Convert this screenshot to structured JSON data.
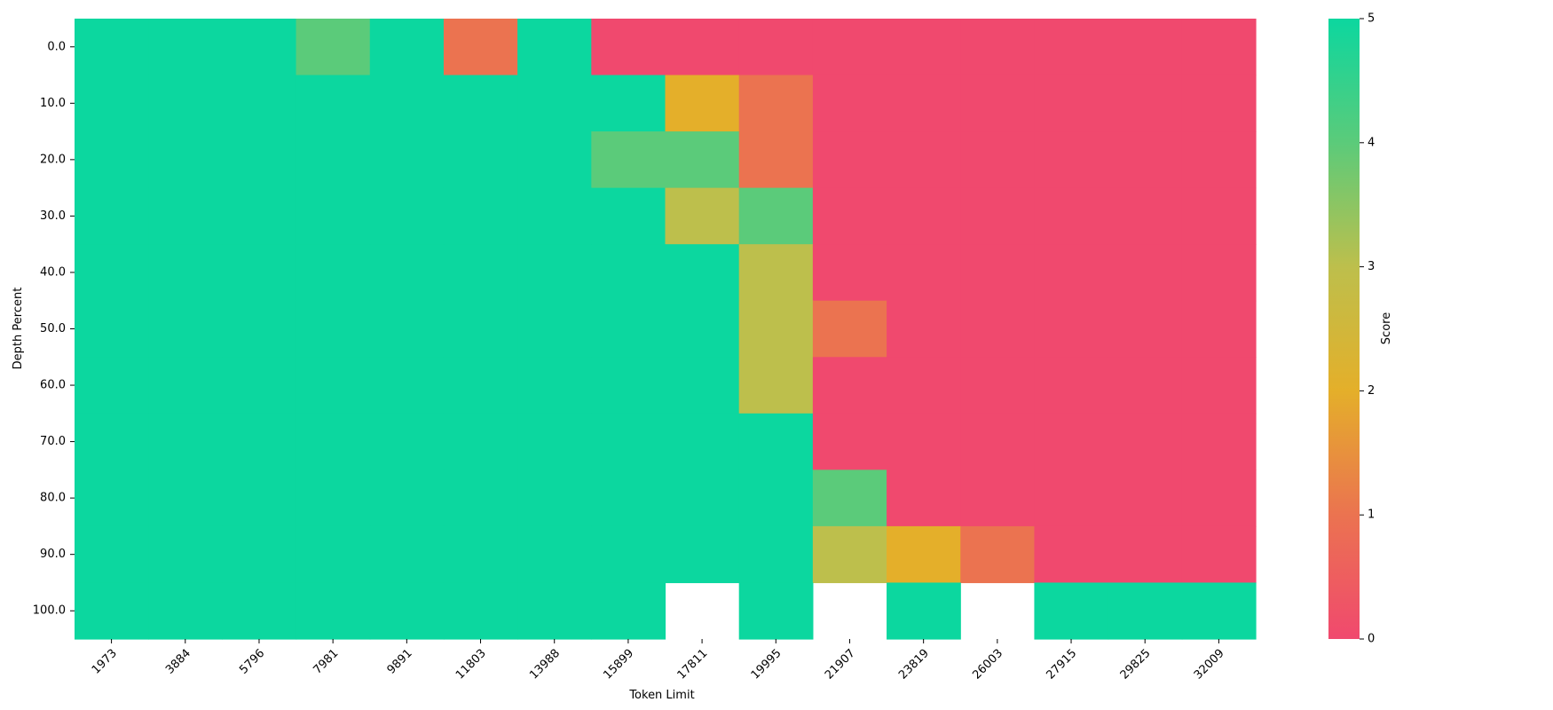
{
  "chart_data": {
    "type": "heatmap",
    "title": "",
    "xlabel": "Token Limit",
    "ylabel": "Depth Percent",
    "colorbar_label": "Score",
    "x": [
      "1973",
      "3884",
      "5796",
      "7981",
      "9891",
      "11803",
      "13988",
      "15899",
      "17811",
      "19995",
      "21907",
      "23819",
      "26003",
      "27915",
      "29825",
      "32009"
    ],
    "y": [
      "0.0",
      "10.0",
      "20.0",
      "30.0",
      "40.0",
      "50.0",
      "60.0",
      "70.0",
      "80.0",
      "90.0",
      "100.0"
    ],
    "values": [
      [
        5,
        5,
        5,
        4,
        5,
        1,
        5,
        0,
        0,
        0,
        0,
        0,
        0,
        0,
        0,
        0
      ],
      [
        5,
        5,
        5,
        5,
        5,
        5,
        5,
        5,
        2,
        1,
        0,
        0,
        0,
        0,
        0,
        0
      ],
      [
        5,
        5,
        5,
        5,
        5,
        5,
        5,
        4,
        4,
        1,
        0,
        0,
        0,
        0,
        0,
        0
      ],
      [
        5,
        5,
        5,
        5,
        5,
        5,
        5,
        5,
        3,
        4,
        0,
        0,
        0,
        0,
        0,
        0
      ],
      [
        5,
        5,
        5,
        5,
        5,
        5,
        5,
        5,
        5,
        3,
        0,
        0,
        0,
        0,
        0,
        0
      ],
      [
        5,
        5,
        5,
        5,
        5,
        5,
        5,
        5,
        5,
        3,
        1,
        0,
        0,
        0,
        0,
        0
      ],
      [
        5,
        5,
        5,
        5,
        5,
        5,
        5,
        5,
        5,
        3,
        0,
        0,
        0,
        0,
        0,
        0
      ],
      [
        5,
        5,
        5,
        5,
        5,
        5,
        5,
        5,
        5,
        5,
        0,
        0,
        0,
        0,
        0,
        0
      ],
      [
        5,
        5,
        5,
        5,
        5,
        5,
        5,
        5,
        5,
        5,
        4,
        0,
        0,
        0,
        0,
        0
      ],
      [
        5,
        5,
        5,
        5,
        5,
        5,
        5,
        5,
        5,
        5,
        3,
        2,
        1,
        0,
        0,
        0
      ],
      [
        5,
        5,
        5,
        5,
        5,
        5,
        5,
        5,
        null,
        5,
        null,
        5,
        null,
        5,
        5,
        5
      ]
    ],
    "color_range": [
      0,
      5
    ],
    "colorbar_ticks": [
      "0",
      "1",
      "2",
      "3",
      "4",
      "5"
    ],
    "colorscale": [
      "#F0496E",
      "#EB7350",
      "#E4AF2A",
      "#BDBF4C",
      "#5BCB7A",
      "#0CD79F"
    ],
    "grid": false,
    "legend": "colorbar-right"
  }
}
